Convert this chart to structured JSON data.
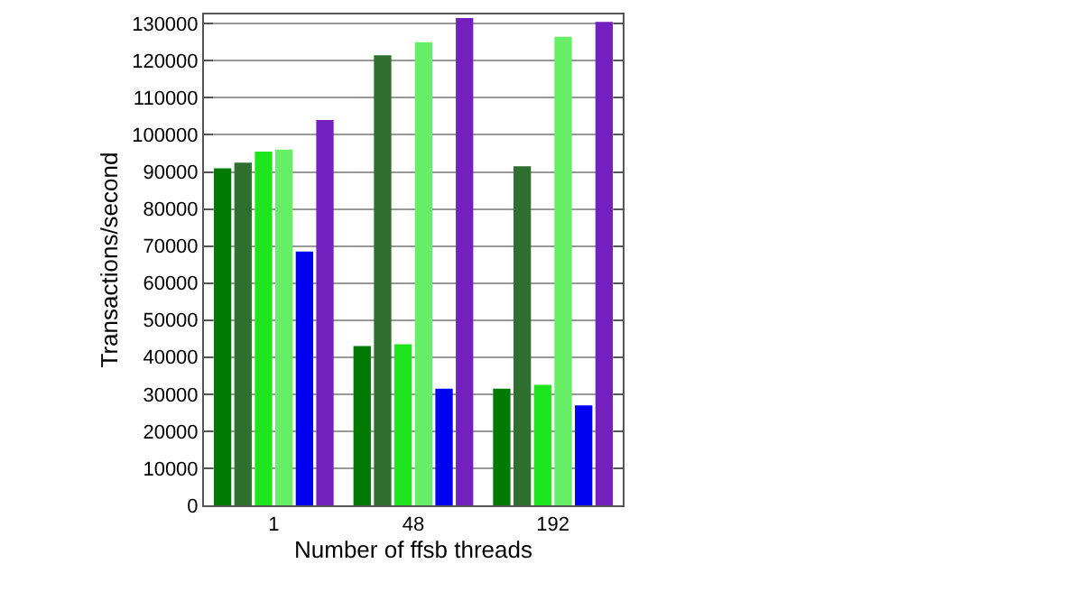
{
  "chart_data": {
    "type": "bar",
    "xlabel": "Number of ffsb threads",
    "ylabel": "Transactions/second",
    "categories": [
      "1",
      "48",
      "192"
    ],
    "series": [
      {
        "color": "#007a00",
        "values": [
          91000,
          43000,
          31500
        ]
      },
      {
        "color": "#2f6f2f",
        "values": [
          92500,
          121500,
          91500
        ]
      },
      {
        "color": "#1ee61e",
        "values": [
          95500,
          43500,
          32500
        ]
      },
      {
        "color": "#66ee66",
        "values": [
          96000,
          125000,
          126500
        ]
      },
      {
        "color": "#0000f0",
        "values": [
          68500,
          31500,
          27000
        ]
      },
      {
        "color": "#7420be",
        "values": [
          104000,
          131500,
          130500
        ]
      }
    ],
    "ylim": [
      0,
      132500
    ],
    "yticks": [
      0,
      10000,
      20000,
      30000,
      40000,
      50000,
      60000,
      70000,
      80000,
      90000,
      100000,
      110000,
      120000,
      130000
    ],
    "grid": "y"
  }
}
